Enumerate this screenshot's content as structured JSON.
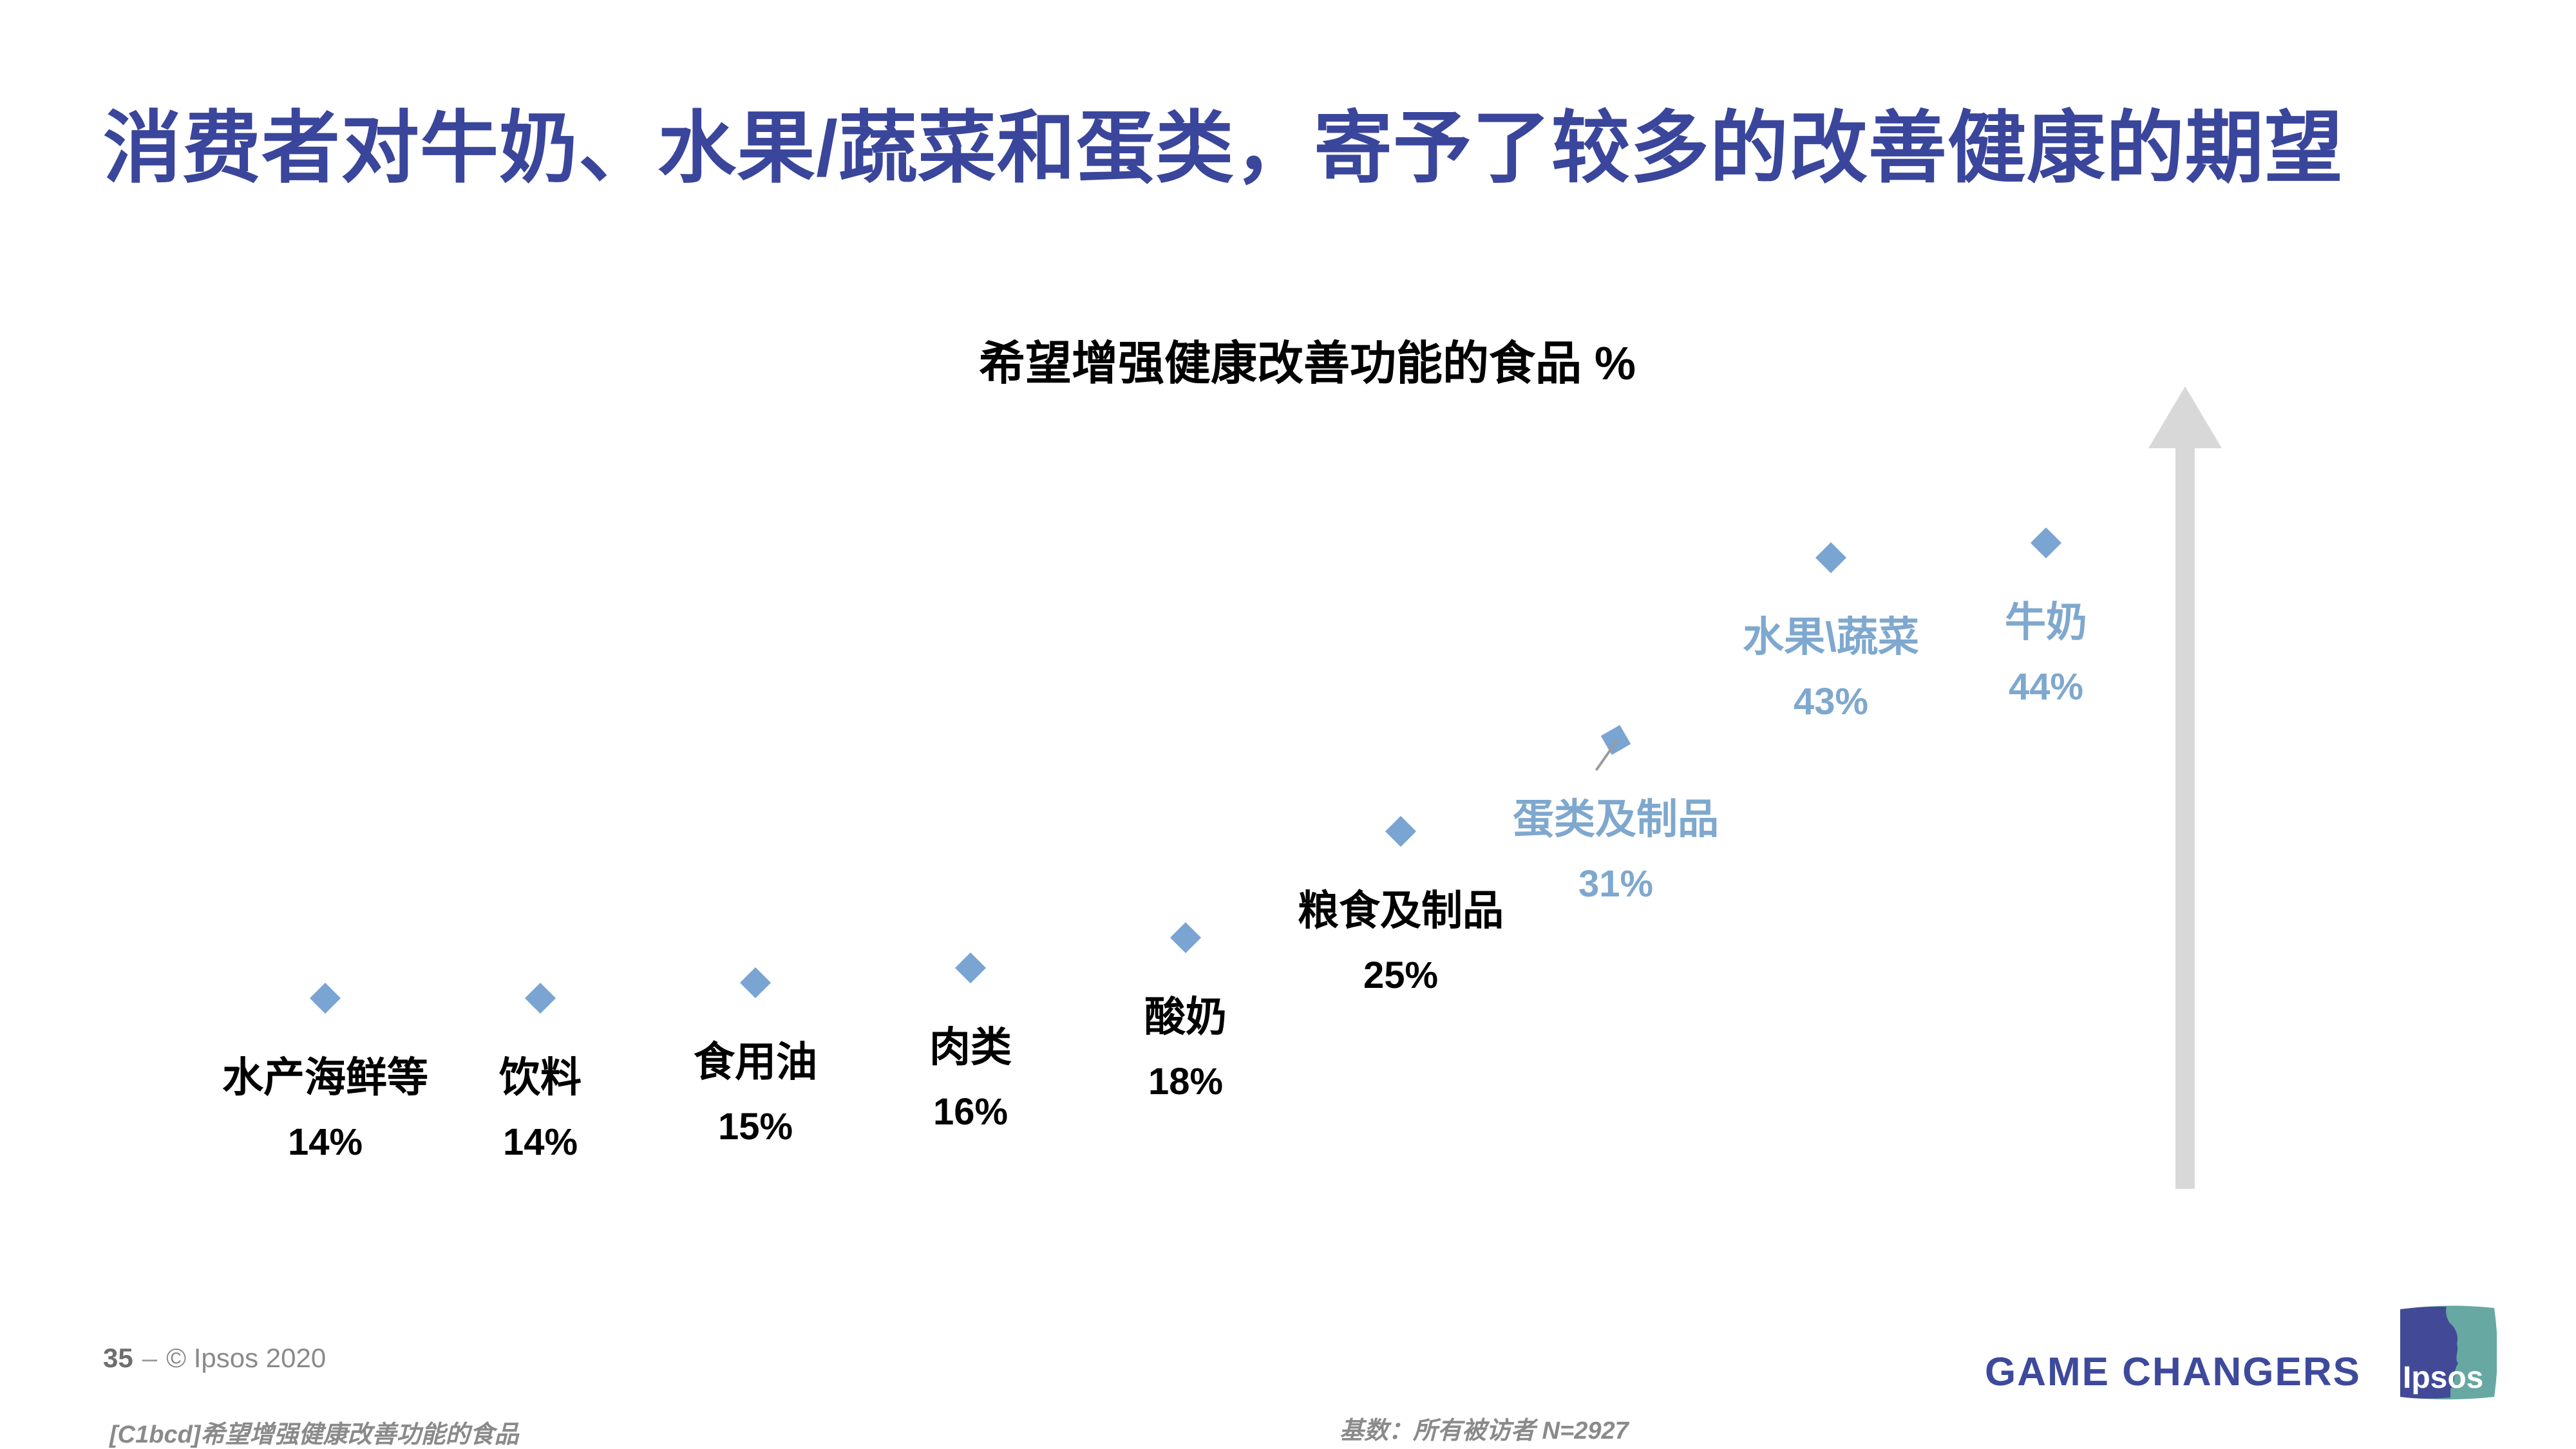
{
  "slide": {
    "title": "消费者对牛奶、水果/蔬菜和蛋类，寄予了较多的改善健康的期望",
    "footer": {
      "page_number": "35",
      "separator": "‒",
      "copyright": "© Ipsos 2020",
      "source_note": "[C1bcd]希望增强健康改善功能的食品",
      "base_note": "基数：所有被访者  N=2927",
      "brand": "GAME CHANGERS",
      "logo_text": "Ipsos"
    }
  },
  "chart_data": {
    "type": "scatter",
    "title": "希望增强健康改善功能的食品 %",
    "unit": "%",
    "marker": "diamond",
    "grid": false,
    "legend": "none",
    "ylim": [
      10,
      50
    ],
    "annotation": "upward-gray-arrow-at-right",
    "categories": [
      "水产海鲜等",
      "饮料",
      "食用油",
      "肉类",
      "酸奶",
      "粮食及制品",
      "蛋类及制品",
      "水果\\蔬菜",
      "牛奶"
    ],
    "values": [
      14,
      14,
      15,
      16,
      18,
      25,
      31,
      43,
      44
    ],
    "points": [
      {
        "label": "水产海鲜等",
        "value": 14,
        "highlighted": false
      },
      {
        "label": "饮料",
        "value": 14,
        "highlighted": false
      },
      {
        "label": "食用油",
        "value": 15,
        "highlighted": false
      },
      {
        "label": "肉类",
        "value": 16,
        "highlighted": false
      },
      {
        "label": "酸奶",
        "value": 18,
        "highlighted": false
      },
      {
        "label": "粮食及制品",
        "value": 25,
        "highlighted": false
      },
      {
        "label": "蛋类及制品",
        "value": 31,
        "highlighted": true,
        "leader_line": true
      },
      {
        "label": "水果\\蔬菜",
        "value": 43,
        "highlighted": true
      },
      {
        "label": "牛奶",
        "value": 44,
        "highlighted": true
      }
    ]
  },
  "colors": {
    "title_blue": "#3A469B",
    "accent_light_blue": "#7AA4D1",
    "highlight_text_blue": "#7FA8CE",
    "arrow_gray": "#D8D8D8",
    "footer_gray": "#8A8A8A",
    "brand_blue": "#3D4A9C",
    "logo_dark_blue": "#424A97",
    "logo_teal": "#67A8A2"
  }
}
